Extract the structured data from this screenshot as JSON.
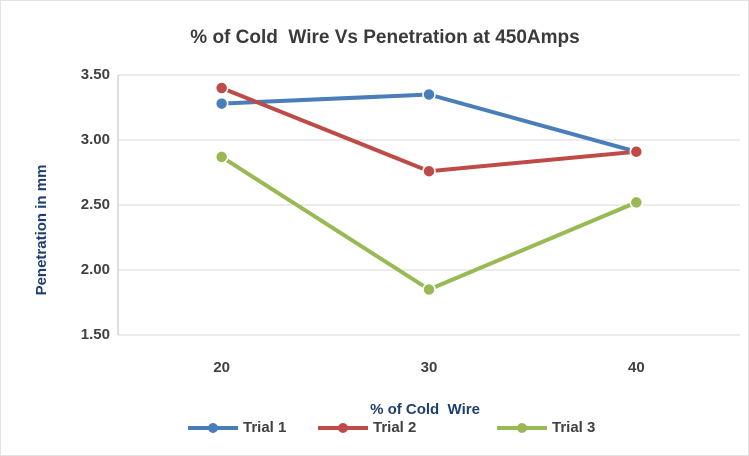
{
  "chart_data": {
    "type": "line",
    "title": "% of Cold  Wire Vs Penetration at 450Amps",
    "x_label": "% of Cold  Wire",
    "y_label": "Penetration in mm",
    "categories": [
      "20",
      "30",
      "40"
    ],
    "series": [
      {
        "name": "Trial 1",
        "color": "#4a7ebb",
        "values": [
          3.28,
          3.35,
          2.91
        ]
      },
      {
        "name": "Trial 2",
        "color": "#be4b48",
        "values": [
          3.4,
          2.76,
          2.91
        ]
      },
      {
        "name": "Trial 3",
        "color": "#98b954",
        "values": [
          2.87,
          1.85,
          2.52
        ]
      }
    ],
    "ylim": [
      1.5,
      3.5
    ],
    "yticks": [
      {
        "value": 1.5,
        "label": "1.50"
      },
      {
        "value": 2.0,
        "label": "2.00"
      },
      {
        "value": 2.5,
        "label": "2.50"
      },
      {
        "value": 3.0,
        "label": "3.00"
      },
      {
        "value": 3.5,
        "label": "3.50"
      }
    ],
    "grid": true,
    "legend": "bottom"
  }
}
